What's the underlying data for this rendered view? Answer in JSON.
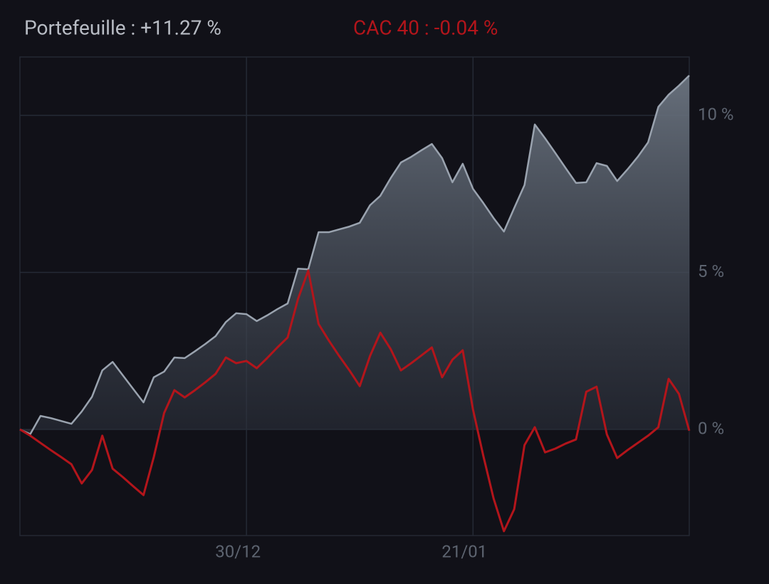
{
  "chart_data": {
    "type": "line",
    "categories": [
      null,
      null,
      null,
      null,
      null,
      null,
      null,
      null,
      null,
      null,
      null,
      null,
      null,
      null,
      null,
      null,
      null,
      null,
      null,
      null,
      null,
      null,
      "30/12",
      null,
      null,
      null,
      null,
      null,
      null,
      null,
      null,
      null,
      null,
      null,
      null,
      null,
      null,
      null,
      null,
      null,
      null,
      null,
      null,
      null,
      "21/01",
      null,
      null,
      null,
      null,
      null,
      null,
      null,
      null,
      null,
      null,
      null,
      null,
      null,
      null,
      null,
      null,
      null,
      null,
      null,
      null,
      null
    ],
    "series": [
      {
        "name": "Portefeuille : +11.27 %",
        "color": "#9aa3af",
        "area": true,
        "values": [
          0,
          -0.15,
          0.43,
          0.36,
          0.27,
          0.18,
          0.57,
          1.04,
          1.88,
          2.15,
          1.72,
          1.29,
          0.86,
          1.66,
          1.84,
          2.29,
          2.27,
          2.49,
          2.72,
          2.97,
          3.42,
          3.7,
          3.67,
          3.45,
          3.63,
          3.83,
          4.01,
          5.12,
          5.1,
          6.28,
          6.28,
          6.37,
          6.46,
          6.58,
          7.14,
          7.44,
          8.0,
          8.5,
          8.68,
          8.89,
          9.09,
          8.64,
          7.87,
          8.46,
          7.66,
          7.21,
          6.73,
          6.3,
          7.05,
          7.78,
          9.71,
          9.27,
          8.8,
          8.32,
          7.85,
          7.87,
          8.48,
          8.39,
          7.91,
          8.28,
          8.68,
          9.14,
          10.27,
          10.66,
          10.95,
          11.27
        ]
      },
      {
        "name": "CAC 40 : -0.04 %",
        "color": "#b3151b",
        "values": [
          0,
          -0.2,
          -0.43,
          -0.66,
          -0.88,
          -1.11,
          -1.72,
          -1.29,
          -0.2,
          -1.25,
          -1.52,
          -1.81,
          -2.09,
          -0.88,
          0.52,
          1.25,
          1.02,
          1.25,
          1.5,
          1.77,
          2.29,
          2.11,
          2.18,
          1.95,
          2.27,
          2.61,
          2.93,
          4.15,
          5.06,
          3.36,
          2.83,
          2.34,
          1.88,
          1.38,
          2.34,
          3.08,
          2.56,
          1.88,
          2.11,
          2.36,
          2.61,
          1.66,
          2.22,
          2.52,
          0.63,
          -0.84,
          -2.2,
          -3.24,
          -2.54,
          -0.5,
          0.07,
          -0.73,
          -0.61,
          -0.45,
          -0.32,
          1.2,
          1.36,
          -0.16,
          -0.91,
          -0.66,
          -0.43,
          -0.2,
          0.07,
          1.61,
          1.13,
          -0.04
        ]
      }
    ],
    "ylim": [
      -3.38,
      11.86
    ],
    "yticks": [
      {
        "value": 0,
        "label": "0 %"
      },
      {
        "value": 5,
        "label": "5 %"
      },
      {
        "value": 10,
        "label": "10 %"
      }
    ],
    "grid": true
  }
}
